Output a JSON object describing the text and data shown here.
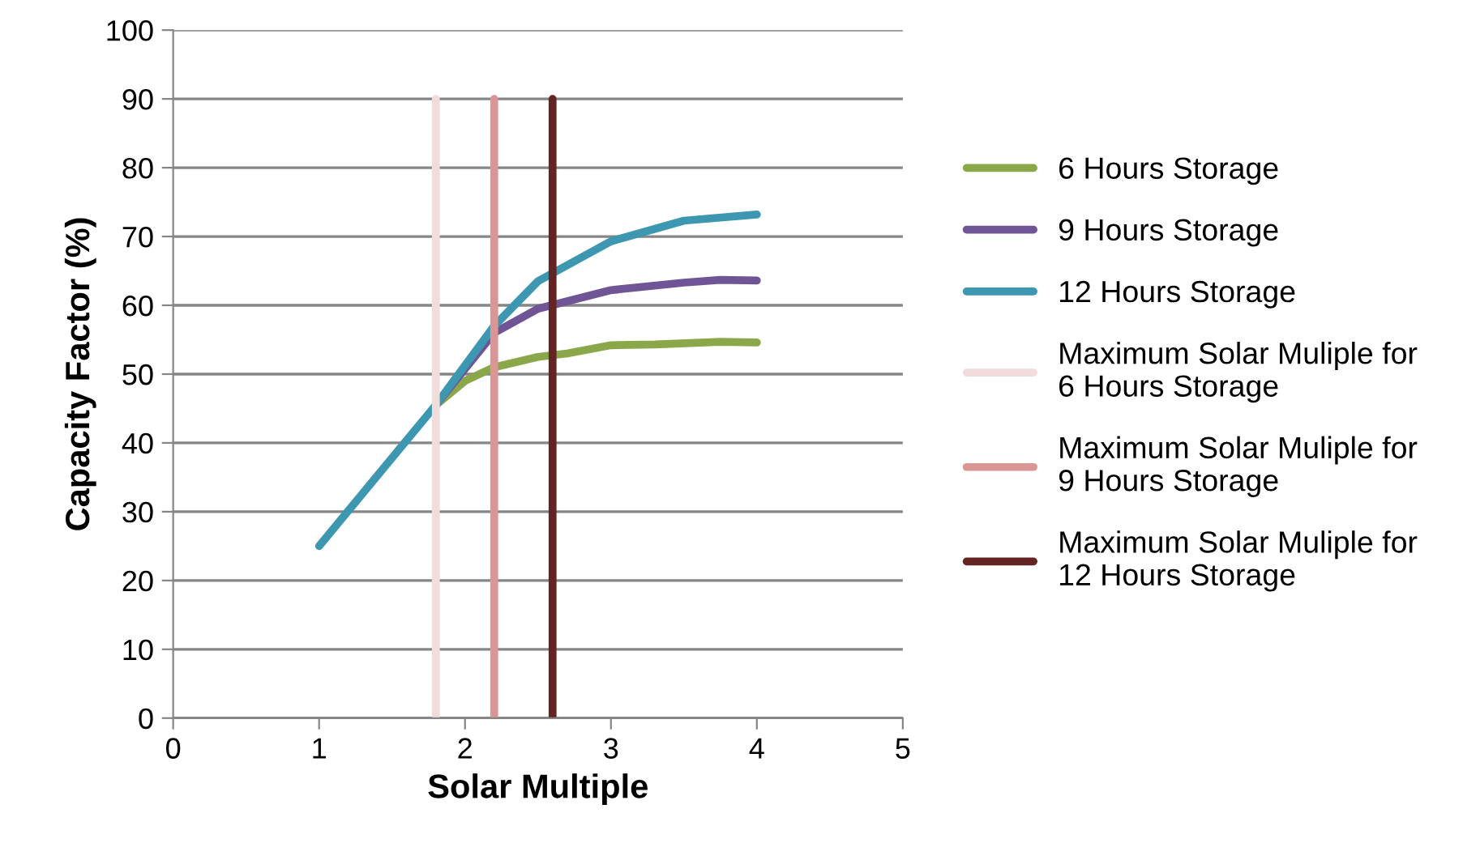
{
  "chart_data": {
    "type": "line",
    "xlabel": "Solar Multiple",
    "ylabel": "Capacity Factor (%)",
    "xlim": [
      0,
      5
    ],
    "xticks": [
      0,
      1,
      2,
      3,
      4,
      5
    ],
    "ylim": [
      0,
      100
    ],
    "yticks": [
      0,
      10,
      20,
      30,
      40,
      50,
      60,
      70,
      80,
      90,
      100
    ],
    "grid": "y",
    "legend": "right",
    "marker": "none",
    "line_style": "solid",
    "series": [
      {
        "name": "6 Hours Storage",
        "color": "#8aa84a",
        "x": [
          1.8,
          2,
          2.2,
          2.5,
          2.7,
          3,
          3.3,
          3.75,
          4
        ],
        "values": [
          45.5,
          49,
          51,
          52.5,
          53,
          54.2,
          54.3,
          54.7,
          54.6
        ]
      },
      {
        "name": "9 Hours Storage",
        "color": "#6f5596",
        "x": [
          1.8,
          2.2,
          2.5,
          3,
          3.5,
          3.75,
          4
        ],
        "values": [
          45.5,
          56,
          59.5,
          62.2,
          63.3,
          63.7,
          63.6
        ]
      },
      {
        "name": "12 Hours Storage",
        "color": "#3e97b0",
        "x": [
          1,
          1.8,
          2.2,
          2.5,
          3,
          3.5,
          4
        ],
        "values": [
          25,
          45.5,
          57,
          63.5,
          69.3,
          72.3,
          73.2
        ]
      },
      {
        "name": "Maximum Solar Muliple for 6 Hours Storage",
        "color": "#f2dcdb",
        "x": [
          1.8,
          1.8
        ],
        "values": [
          0,
          90
        ]
      },
      {
        "name": "Maximum Solar Muliple for 9 Hours Storage",
        "color": "#d99694",
        "x": [
          2.2,
          2.2
        ],
        "values": [
          0,
          90
        ]
      },
      {
        "name": "Maximum Solar Muliple for 12 Hours Storage",
        "color": "#632523",
        "x": [
          2.6,
          2.6
        ],
        "values": [
          0,
          90
        ]
      }
    ]
  }
}
